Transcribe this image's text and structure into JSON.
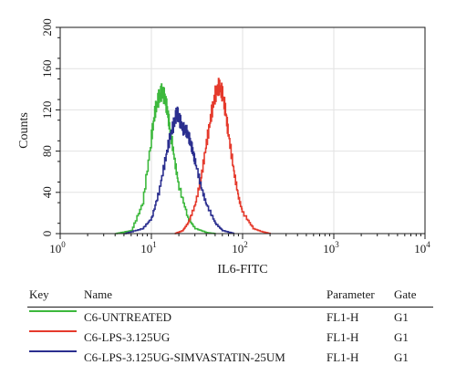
{
  "chart_data": {
    "type": "line",
    "xlabel": "IL6-FITC",
    "ylabel": "Counts",
    "x_scale": "log",
    "xlim": [
      1,
      10000
    ],
    "ylim": [
      0,
      200
    ],
    "x_ticks": [
      {
        "value": 1,
        "base": "10",
        "exp": "0"
      },
      {
        "value": 10,
        "base": "10",
        "exp": "1"
      },
      {
        "value": 100,
        "base": "10",
        "exp": "2"
      },
      {
        "value": 1000,
        "base": "10",
        "exp": "3"
      },
      {
        "value": 10000,
        "base": "10",
        "exp": "4"
      }
    ],
    "y_ticks": [
      0,
      40,
      80,
      120,
      160,
      200
    ],
    "series": [
      {
        "name": "C6-UNTREATED",
        "color": "#3cb83c",
        "x": [
          4,
          6,
          8,
          10,
          11,
          12,
          13,
          14,
          15,
          16,
          18,
          20,
          25,
          30,
          40,
          50
        ],
        "y": [
          0,
          3,
          30,
          95,
          120,
          132,
          138,
          132,
          118,
          100,
          70,
          45,
          15,
          5,
          1,
          0
        ]
      },
      {
        "name": "C6-LPS-3.125UG",
        "color": "#e53a2c",
        "x": [
          18,
          22,
          25,
          30,
          35,
          40,
          45,
          50,
          55,
          60,
          65,
          70,
          80,
          90,
          100,
          130,
          160,
          200
        ],
        "y": [
          0,
          3,
          10,
          28,
          55,
          88,
          115,
          135,
          143,
          136,
          118,
          95,
          60,
          35,
          20,
          5,
          2,
          0
        ]
      },
      {
        "name": "C6-LPS-3.125UG-SIMVASTATIN-25UM",
        "color": "#2b2f8f",
        "x": [
          5,
          8,
          10,
          12,
          14,
          16,
          18,
          19,
          20,
          22,
          24,
          26,
          28,
          30,
          35,
          40,
          50,
          60,
          80
        ],
        "y": [
          0,
          5,
          15,
          40,
          70,
          95,
          110,
          118,
          112,
          102,
          100,
          92,
          82,
          70,
          45,
          28,
          10,
          3,
          0
        ]
      }
    ]
  },
  "legend": {
    "headers": {
      "key": "Key",
      "name": "Name",
      "parameter": "Parameter",
      "gate": "Gate"
    },
    "rows": [
      {
        "name": "C6-UNTREATED",
        "parameter": "FL1-H",
        "gate": "G1",
        "color": "#3cb83c"
      },
      {
        "name": "C6-LPS-3.125UG",
        "parameter": "FL1-H",
        "gate": "G1",
        "color": "#e53a2c"
      },
      {
        "name": "C6-LPS-3.125UG-SIMVASTATIN-25UM",
        "parameter": "FL1-H",
        "gate": "G1",
        "color": "#2b2f8f"
      }
    ]
  }
}
